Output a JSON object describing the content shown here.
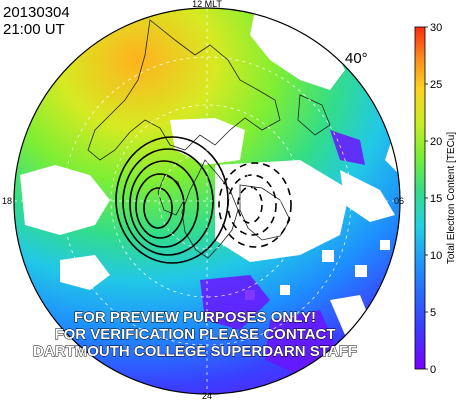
{
  "header": {
    "date": "20130304",
    "time": "21:00 UT"
  },
  "map": {
    "latitude_label": "40°",
    "mlt_labels": {
      "top": "12 MLT",
      "left": "18",
      "right": "06",
      "bottom": "24"
    },
    "watermark": [
      "FOR PREVIEW PURPOSES ONLY!",
      "FOR VERIFICATION PLEASE CONTACT",
      "DARTMOUTH COLLEGE SUPERDARN STAFF"
    ]
  },
  "colorbar": {
    "label": "Total Electron Content [TECu]",
    "ticks": [
      "0",
      "5",
      "10",
      "15",
      "20",
      "25",
      "30"
    ],
    "min": 0,
    "max": 30,
    "colors": [
      "#7a00ff",
      "#3a3cff",
      "#1e90ff",
      "#22d0e0",
      "#33dd88",
      "#77ee33",
      "#c8ee22",
      "#ffd21e",
      "#ff8a1a",
      "#ff2a10"
    ]
  }
}
